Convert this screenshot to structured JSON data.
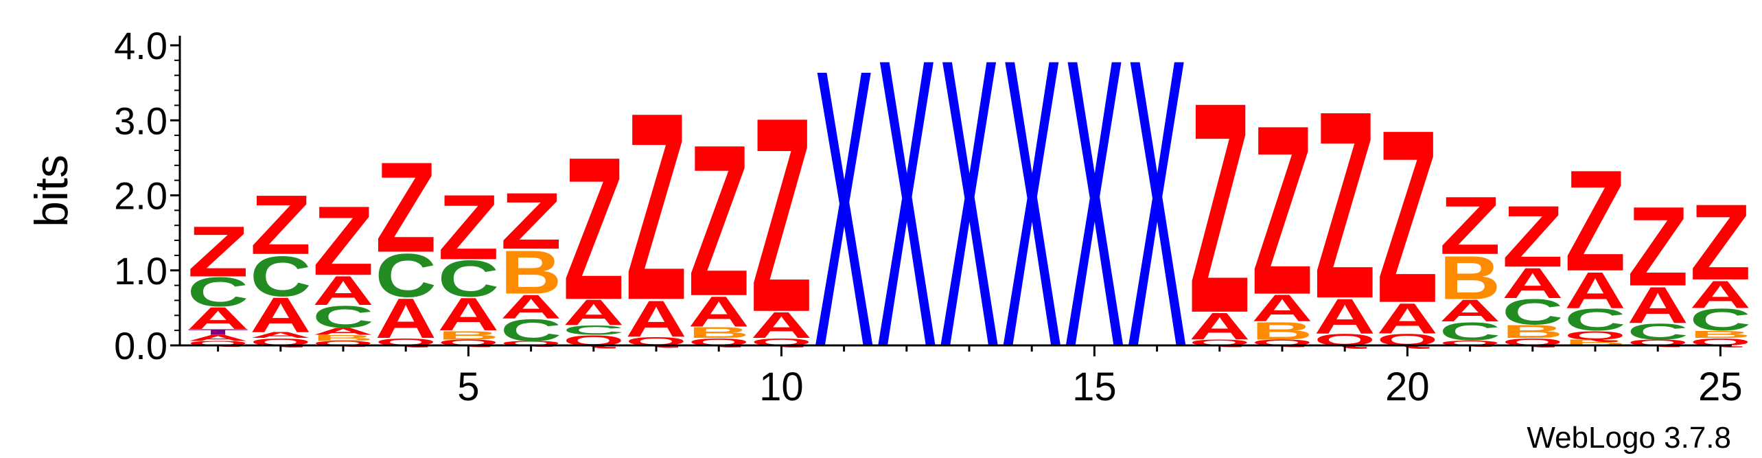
{
  "chart_data": {
    "type": "sequence-logo",
    "ylabel": "bits",
    "ylim": [
      0,
      4.0
    ],
    "y_ticks": [
      "0.0",
      "1.0",
      "2.0",
      "3.0",
      "4.0"
    ],
    "y_tick_values": [
      0,
      1,
      2,
      3,
      4
    ],
    "x_ticks": [
      "5",
      "10",
      "15",
      "20",
      "25"
    ],
    "x_tick_values": [
      5,
      10,
      15,
      20,
      25
    ],
    "footer": "WebLogo 3.7.8",
    "colors": {
      "Z": "#ff0000",
      "A": "#ff0000",
      "Q": "#ff0000",
      "C": "#228b22",
      "B": "#ff8c00",
      "X": "#0000ff",
      "T": "#800080"
    },
    "positions": [
      {
        "pos": 1,
        "stack": [
          [
            "Q",
            0.06
          ],
          [
            "A",
            0.08
          ],
          [
            "T",
            0.08
          ],
          [
            "A",
            0.3
          ],
          [
            "C",
            0.4
          ],
          [
            "Z",
            0.7
          ]
        ]
      },
      {
        "pos": 2,
        "stack": [
          [
            "Q",
            0.1
          ],
          [
            "A",
            0.08
          ],
          [
            "A",
            0.48
          ],
          [
            "C",
            0.56
          ],
          [
            "Z",
            0.82
          ]
        ]
      },
      {
        "pos": 3,
        "stack": [
          [
            "Q",
            0.06
          ],
          [
            "B",
            0.08
          ],
          [
            "A",
            0.1
          ],
          [
            "C",
            0.3
          ],
          [
            "A",
            0.4
          ],
          [
            "Z",
            0.96
          ]
        ]
      },
      {
        "pos": 4,
        "stack": [
          [
            "Q",
            0.1
          ],
          [
            "A",
            0.55
          ],
          [
            "C",
            0.6
          ],
          [
            "Z",
            1.25
          ]
        ]
      },
      {
        "pos": 5,
        "stack": [
          [
            "Q",
            0.08
          ],
          [
            "B",
            0.12
          ],
          [
            "A",
            0.45
          ],
          [
            "C",
            0.5
          ],
          [
            "Z",
            0.9
          ]
        ]
      },
      {
        "pos": 6,
        "stack": [
          [
            "Q",
            0.06
          ],
          [
            "C",
            0.3
          ],
          [
            "A",
            0.33
          ],
          [
            "B",
            0.6
          ],
          [
            "Z",
            0.78
          ]
        ]
      },
      {
        "pos": 7,
        "stack": [
          [
            "Q",
            0.14
          ],
          [
            "C",
            0.13
          ],
          [
            "A",
            0.35
          ],
          [
            "Z",
            1.98
          ]
        ]
      },
      {
        "pos": 8,
        "stack": [
          [
            "Q",
            0.12
          ],
          [
            "A",
            0.5
          ],
          [
            "Z",
            2.6
          ]
        ]
      },
      {
        "pos": 9,
        "stack": [
          [
            "Q",
            0.1
          ],
          [
            "B",
            0.15
          ],
          [
            "A",
            0.42
          ],
          [
            "Z",
            2.1
          ]
        ]
      },
      {
        "pos": 10,
        "stack": [
          [
            "Q",
            0.1
          ],
          [
            "A",
            0.36
          ],
          [
            "Z",
            2.7
          ]
        ]
      },
      {
        "pos": 11,
        "stack": [
          [
            "X",
            3.85
          ]
        ]
      },
      {
        "pos": 12,
        "stack": [
          [
            "X",
            4.0
          ]
        ]
      },
      {
        "pos": 13,
        "stack": [
          [
            "X",
            4.0
          ]
        ]
      },
      {
        "pos": 14,
        "stack": [
          [
            "X",
            4.0
          ]
        ]
      },
      {
        "pos": 15,
        "stack": [
          [
            "X",
            4.0
          ]
        ]
      },
      {
        "pos": 16,
        "stack": [
          [
            "X",
            4.0
          ]
        ]
      },
      {
        "pos": 17,
        "stack": [
          [
            "Q",
            0.08
          ],
          [
            "A",
            0.37
          ],
          [
            "Z",
            2.92
          ]
        ]
      },
      {
        "pos": 18,
        "stack": [
          [
            "Q",
            0.08
          ],
          [
            "B",
            0.24
          ],
          [
            "A",
            0.37
          ],
          [
            "Z",
            2.35
          ]
        ]
      },
      {
        "pos": 19,
        "stack": [
          [
            "Q",
            0.16
          ],
          [
            "A",
            0.48
          ],
          [
            "Z",
            2.6
          ]
        ]
      },
      {
        "pos": 20,
        "stack": [
          [
            "Q",
            0.16
          ],
          [
            "A",
            0.42
          ],
          [
            "Z",
            2.4
          ]
        ]
      },
      {
        "pos": 21,
        "stack": [
          [
            "Q",
            0.07
          ],
          [
            "C",
            0.25
          ],
          [
            "A",
            0.3
          ],
          [
            "B",
            0.6
          ],
          [
            "Z",
            0.8
          ]
        ]
      },
      {
        "pos": 22,
        "stack": [
          [
            "Q",
            0.1
          ],
          [
            "B",
            0.18
          ],
          [
            "C",
            0.35
          ],
          [
            "A",
            0.42
          ],
          [
            "Z",
            0.85
          ]
        ]
      },
      {
        "pos": 23,
        "stack": [
          [
            "B",
            0.08
          ],
          [
            "Q",
            0.12
          ],
          [
            "C",
            0.3
          ],
          [
            "A",
            0.5
          ],
          [
            "Z",
            1.4
          ]
        ]
      },
      {
        "pos": 24,
        "stack": [
          [
            "Q",
            0.08
          ],
          [
            "C",
            0.22
          ],
          [
            "A",
            0.5
          ],
          [
            "Z",
            1.1
          ]
        ]
      },
      {
        "pos": 25,
        "stack": [
          [
            "Q",
            0.1
          ],
          [
            "B",
            0.1
          ],
          [
            "C",
            0.3
          ],
          [
            "A",
            0.38
          ],
          [
            "Z",
            1.05
          ]
        ]
      }
    ]
  }
}
